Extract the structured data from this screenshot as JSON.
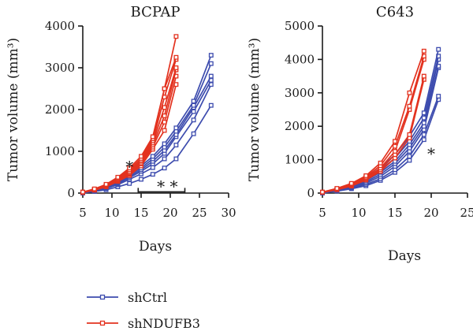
{
  "legend": [
    {
      "label": "shCtrl",
      "color": "#3d4cae"
    },
    {
      "label": "shNDUFB3",
      "color": "#e3321f"
    }
  ],
  "chart_data": [
    {
      "type": "line",
      "title": "BCPAP",
      "xlabel": "Days",
      "ylabel": "Tumor volume (mm³)",
      "xlim": [
        5,
        30
      ],
      "ylim": [
        0,
        4000
      ],
      "xticks": [
        5,
        10,
        15,
        20,
        25,
        30
      ],
      "yticks": [
        0,
        1000,
        2000,
        3000,
        4000
      ],
      "annotations": [
        {
          "text": "*",
          "x": 13,
          "y": 650
        },
        {
          "text": "* *",
          "x": 19.5,
          "y": 180
        }
      ],
      "bracket": {
        "x1": 14.5,
        "x2": 22.5,
        "y": 30
      },
      "series": [
        {
          "group": "shCtrl",
          "color": "#3d4cae",
          "x": [
            5,
            7,
            9,
            11,
            13,
            15,
            17,
            19,
            21,
            24,
            27
          ],
          "y": [
            0,
            40,
            80,
            150,
            230,
            330,
            450,
            600,
            820,
            1420,
            2100
          ]
        },
        {
          "group": "shCtrl",
          "color": "#3d4cae",
          "x": [
            5,
            7,
            9,
            11,
            13,
            15,
            17,
            19,
            21,
            24,
            27
          ],
          "y": [
            10,
            50,
            110,
            200,
            330,
            460,
            610,
            820,
            1150,
            1750,
            2600
          ]
        },
        {
          "group": "shCtrl",
          "color": "#3d4cae",
          "x": [
            5,
            7,
            9,
            11,
            13,
            15,
            17,
            19,
            21,
            24,
            27
          ],
          "y": [
            10,
            55,
            120,
            220,
            370,
            520,
            700,
            950,
            1350,
            1950,
            2700
          ]
        },
        {
          "group": "shCtrl",
          "color": "#3d4cae",
          "x": [
            5,
            7,
            9,
            11,
            13,
            15,
            17,
            19,
            21,
            24,
            27
          ],
          "y": [
            10,
            60,
            130,
            240,
            400,
            560,
            760,
            1020,
            1400,
            2050,
            2800
          ]
        },
        {
          "group": "shCtrl",
          "color": "#3d4cae",
          "x": [
            5,
            7,
            9,
            11,
            13,
            15,
            17,
            19,
            21,
            24,
            27
          ],
          "y": [
            15,
            65,
            140,
            260,
            430,
            600,
            820,
            1100,
            1480,
            2100,
            3100
          ]
        },
        {
          "group": "shCtrl",
          "color": "#3d4cae",
          "x": [
            5,
            7,
            9,
            11,
            13,
            15,
            17,
            19,
            21,
            24,
            27
          ],
          "y": [
            15,
            70,
            150,
            280,
            460,
            650,
            880,
            1180,
            1560,
            2200,
            3300
          ]
        },
        {
          "group": "shNDUFB3",
          "color": "#e3321f",
          "x": [
            5,
            7,
            9,
            11,
            13,
            15,
            17,
            19,
            21
          ],
          "y": [
            15,
            70,
            150,
            280,
            420,
            650,
            1050,
            1500,
            2600
          ]
        },
        {
          "group": "shNDUFB3",
          "color": "#e3321f",
          "x": [
            5,
            7,
            9,
            11,
            13,
            15,
            17,
            19,
            21
          ],
          "y": [
            15,
            75,
            160,
            290,
            450,
            700,
            1100,
            1700,
            2800
          ]
        },
        {
          "group": "shNDUFB3",
          "color": "#e3321f",
          "x": [
            5,
            7,
            9,
            11,
            13,
            15,
            17,
            19,
            21
          ],
          "y": [
            20,
            80,
            170,
            300,
            470,
            720,
            1150,
            1850,
            2950
          ]
        },
        {
          "group": "shNDUFB3",
          "color": "#e3321f",
          "x": [
            5,
            7,
            9,
            11,
            13,
            15,
            17,
            19,
            21
          ],
          "y": [
            20,
            85,
            180,
            320,
            490,
            760,
            1200,
            2050,
            3000
          ]
        },
        {
          "group": "shNDUFB3",
          "color": "#e3321f",
          "x": [
            5,
            7,
            9,
            11,
            13,
            15,
            17,
            19,
            21
          ],
          "y": [
            20,
            90,
            190,
            340,
            520,
            790,
            1250,
            2300,
            3200
          ]
        },
        {
          "group": "shNDUFB3",
          "color": "#e3321f",
          "x": [
            5,
            7,
            9,
            11,
            13,
            15,
            17,
            19,
            21
          ],
          "y": [
            25,
            95,
            200,
            360,
            560,
            830,
            1300,
            2500,
            3250
          ]
        },
        {
          "group": "shNDUFB3",
          "color": "#e3321f",
          "x": [
            5,
            7,
            9,
            11,
            13,
            15,
            17,
            19,
            21
          ],
          "y": [
            25,
            100,
            210,
            380,
            600,
            880,
            1350,
            2500,
            3750
          ]
        }
      ]
    },
    {
      "type": "line",
      "title": "C643",
      "xlabel": "Days",
      "ylabel": "Tumor volume (mm³)",
      "xlim": [
        5,
        25
      ],
      "ylim": [
        0,
        5000
      ],
      "xticks": [
        5,
        10,
        15,
        20,
        25
      ],
      "yticks": [
        0,
        1000,
        2000,
        3000,
        4000,
        5000
      ],
      "annotations": [
        {
          "text": "*",
          "x": 20,
          "y": 1200
        }
      ],
      "series": [
        {
          "group": "shCtrl",
          "color": "#3d4cae",
          "x": [
            5,
            7,
            9,
            11,
            13,
            15,
            17,
            19,
            21
          ],
          "y": [
            0,
            60,
            130,
            220,
            380,
            620,
            980,
            1600,
            2800
          ]
        },
        {
          "group": "shCtrl",
          "color": "#3d4cae",
          "x": [
            5,
            7,
            9,
            11,
            13,
            15,
            17,
            19,
            21
          ],
          "y": [
            10,
            70,
            150,
            260,
            430,
            700,
            1100,
            1750,
            2900
          ]
        },
        {
          "group": "shCtrl",
          "color": "#3d4cae",
          "x": [
            5,
            7,
            9,
            11,
            13,
            15,
            17,
            19,
            21
          ],
          "y": [
            15,
            80,
            170,
            300,
            500,
            800,
            1250,
            1900,
            3750
          ]
        },
        {
          "group": "shCtrl",
          "color": "#3d4cae",
          "x": [
            5,
            7,
            9,
            11,
            13,
            15,
            17,
            19,
            21
          ],
          "y": [
            15,
            90,
            190,
            340,
            560,
            880,
            1350,
            2000,
            3800
          ]
        },
        {
          "group": "shCtrl",
          "color": "#3d4cae",
          "x": [
            5,
            7,
            9,
            11,
            13,
            15,
            17,
            19,
            21
          ],
          "y": [
            20,
            100,
            210,
            380,
            620,
            950,
            1450,
            2100,
            4000
          ]
        },
        {
          "group": "shCtrl",
          "color": "#3d4cae",
          "x": [
            5,
            7,
            9,
            11,
            13,
            15,
            17,
            19,
            21
          ],
          "y": [
            20,
            110,
            230,
            420,
            680,
            1050,
            1550,
            2250,
            4100
          ]
        },
        {
          "group": "shCtrl",
          "color": "#3d4cae",
          "x": [
            5,
            7,
            9,
            11,
            13,
            15,
            17,
            19,
            21
          ],
          "y": [
            25,
            120,
            250,
            460,
            750,
            1150,
            1700,
            2400,
            4300
          ]
        },
        {
          "group": "shNDUFB3",
          "color": "#e3321f",
          "x": [
            5,
            7,
            9,
            11,
            13,
            15,
            17,
            19
          ],
          "y": [
            20,
            100,
            210,
            390,
            650,
            1050,
            1650,
            3400
          ]
        },
        {
          "group": "shNDUFB3",
          "color": "#e3321f",
          "x": [
            5,
            7,
            9,
            11,
            13,
            15,
            17,
            19
          ],
          "y": [
            25,
            110,
            230,
            420,
            700,
            1150,
            1750,
            3500
          ]
        },
        {
          "group": "shNDUFB3",
          "color": "#e3321f",
          "x": [
            5,
            7,
            9,
            11,
            13,
            15,
            17,
            19
          ],
          "y": [
            25,
            120,
            250,
            450,
            750,
            1250,
            2500,
            4000
          ]
        },
        {
          "group": "shNDUFB3",
          "color": "#e3321f",
          "x": [
            5,
            7,
            9,
            11,
            13,
            15,
            17,
            19
          ],
          "y": [
            30,
            130,
            270,
            480,
            820,
            1400,
            2600,
            4100
          ]
        },
        {
          "group": "shNDUFB3",
          "color": "#e3321f",
          "x": [
            5,
            7,
            9,
            11,
            13,
            15,
            17,
            19
          ],
          "y": [
            30,
            140,
            290,
            520,
            900,
            1550,
            3000,
            4250
          ]
        }
      ]
    }
  ]
}
